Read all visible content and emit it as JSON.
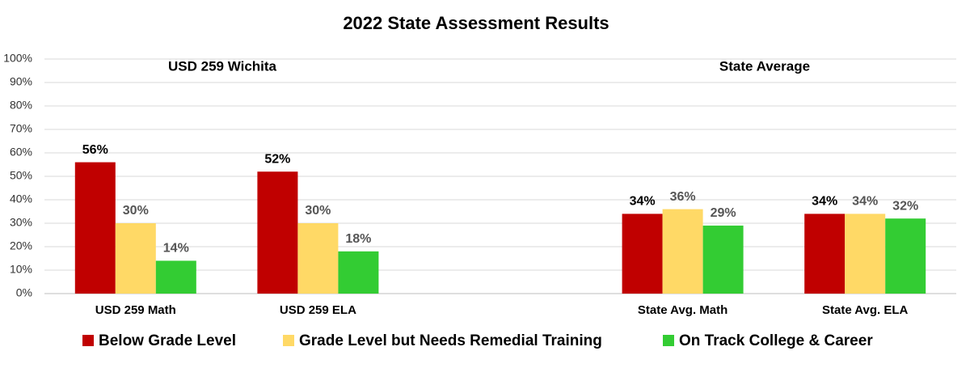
{
  "chart_data": {
    "type": "bar",
    "title": "2022 State Assessment Results",
    "annotations": [
      "USD 259 Wichita",
      "State Average"
    ],
    "categories": [
      "USD 259 Math",
      "USD 259 ELA",
      null,
      "State Avg. Math",
      "State Avg. ELA"
    ],
    "series": [
      {
        "name": "Below Grade Level",
        "color": "#c00000",
        "values": [
          56,
          52,
          null,
          34,
          34
        ],
        "value_labels": [
          "56%",
          "52%",
          null,
          "34%",
          "34%"
        ]
      },
      {
        "name": "Grade Level but Needs Remedial Training",
        "color": "#ffd966",
        "values": [
          30,
          30,
          null,
          36,
          34
        ],
        "value_labels": [
          "30%",
          "30%",
          null,
          "36%",
          "34%"
        ]
      },
      {
        "name": "On Track College & Career",
        "color": "#33cc33",
        "values": [
          14,
          18,
          null,
          29,
          32
        ],
        "value_labels": [
          "14%",
          "18%",
          null,
          "29%",
          "32%"
        ]
      }
    ],
    "ylim": [
      0,
      100
    ],
    "yticks": [
      {
        "value": 0,
        "label": "0%"
      },
      {
        "value": 10,
        "label": "10%"
      },
      {
        "value": 20,
        "label": "20%"
      },
      {
        "value": 30,
        "label": "30%"
      },
      {
        "value": 40,
        "label": "40%"
      },
      {
        "value": 50,
        "label": "50%"
      },
      {
        "value": 60,
        "label": "60%"
      },
      {
        "value": 70,
        "label": "70%"
      },
      {
        "value": 80,
        "label": "80%"
      },
      {
        "value": 90,
        "label": "90%"
      },
      {
        "value": 100,
        "label": "100%"
      }
    ],
    "grid": true,
    "legend": "bottom"
  }
}
